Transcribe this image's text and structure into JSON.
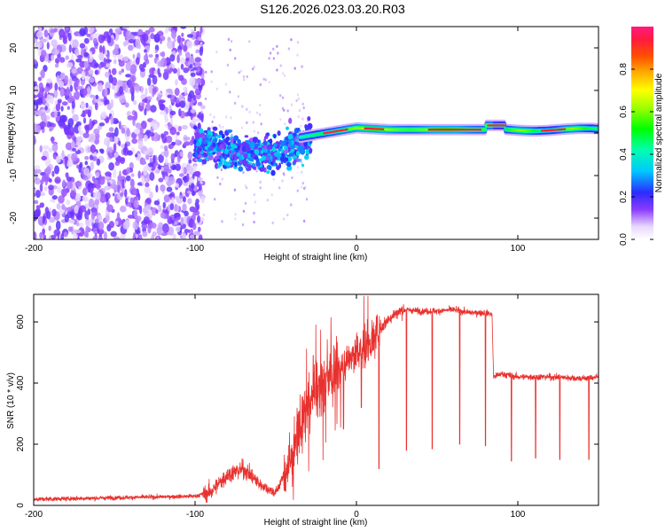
{
  "title": "S126.2026.023.03.20.R03",
  "colors": {
    "snr_line": "#e8312e",
    "frame": "#000000",
    "background": "#ffffff"
  },
  "chart_data": [
    {
      "id": "spectrogram",
      "type": "heatmap",
      "xlabel": "Height of straight line (km)",
      "ylabel": "Frequency (Hz)",
      "xlim": [
        -200,
        150
      ],
      "ylim": [
        -25,
        25
      ],
      "xticks": [
        -200,
        -100,
        0,
        100
      ],
      "yticks": [
        -20,
        -10,
        0,
        10,
        20
      ],
      "colorbar": {
        "label": "Normalized spectral amplitude",
        "range": [
          0,
          1
        ],
        "ticks": [
          0.0,
          0.2,
          0.4,
          0.6,
          0.8
        ]
      },
      "description_points": [
        {
          "x": -200,
          "freq_center": 0,
          "spread": 25,
          "amplitude": 0.15
        },
        {
          "x": -100,
          "freq_center": 0,
          "spread": 25,
          "amplitude": 0.15
        },
        {
          "x": -90,
          "freq_center": -2,
          "spread": 5,
          "amplitude": 0.25
        },
        {
          "x": -50,
          "freq_center": -4,
          "spread": 5,
          "amplitude": 0.35
        },
        {
          "x": -30,
          "freq_center": -1,
          "spread": 2,
          "amplitude": 0.6
        },
        {
          "x": 0,
          "freq_center": 1.5,
          "spread": 1.5,
          "amplitude": 0.85
        },
        {
          "x": 50,
          "freq_center": 0.8,
          "spread": 1.5,
          "amplitude": 0.95
        },
        {
          "x": 85,
          "freq_center": 1.8,
          "spread": 1.5,
          "amplitude": 0.9
        },
        {
          "x": 150,
          "freq_center": 0.8,
          "spread": 1.5,
          "amplitude": 0.75
        }
      ]
    },
    {
      "id": "snr",
      "type": "line",
      "xlabel": "Height of straight line (km)",
      "ylabel": "SNR (10 * v/v)",
      "xlim": [
        -200,
        150
      ],
      "ylim": [
        0,
        690
      ],
      "xticks": [
        -200,
        -100,
        0,
        100
      ],
      "yticks": [
        0,
        200,
        400,
        600
      ],
      "series": [
        {
          "name": "SNR",
          "x": [
            -200,
            -150,
            -100,
            -90,
            -80,
            -70,
            -60,
            -50,
            -45,
            -40,
            -35,
            -30,
            -25,
            -20,
            -15,
            -10,
            -5,
            0,
            5,
            10,
            15,
            20,
            25,
            30,
            40,
            50,
            60,
            70,
            80,
            84,
            85,
            90,
            100,
            110,
            120,
            130,
            140,
            150
          ],
          "y": [
            20,
            25,
            30,
            45,
            100,
            120,
            70,
            40,
            100,
            150,
            250,
            320,
            380,
            400,
            420,
            450,
            480,
            500,
            510,
            540,
            580,
            610,
            630,
            640,
            635,
            635,
            640,
            630,
            630,
            625,
            420,
            430,
            420,
            420,
            420,
            418,
            415,
            420
          ]
        }
      ],
      "dips": [
        {
          "x": -8,
          "y": 250
        },
        {
          "x": 3,
          "y": 320
        },
        {
          "x": 14,
          "y": 120
        },
        {
          "x": 31,
          "y": 180
        },
        {
          "x": 47,
          "y": 185
        },
        {
          "x": 64,
          "y": 200
        },
        {
          "x": 80,
          "y": 195
        },
        {
          "x": 96,
          "y": 145
        },
        {
          "x": 111,
          "y": 155
        },
        {
          "x": 126,
          "y": 150
        },
        {
          "x": 144,
          "y": 150
        }
      ]
    }
  ]
}
